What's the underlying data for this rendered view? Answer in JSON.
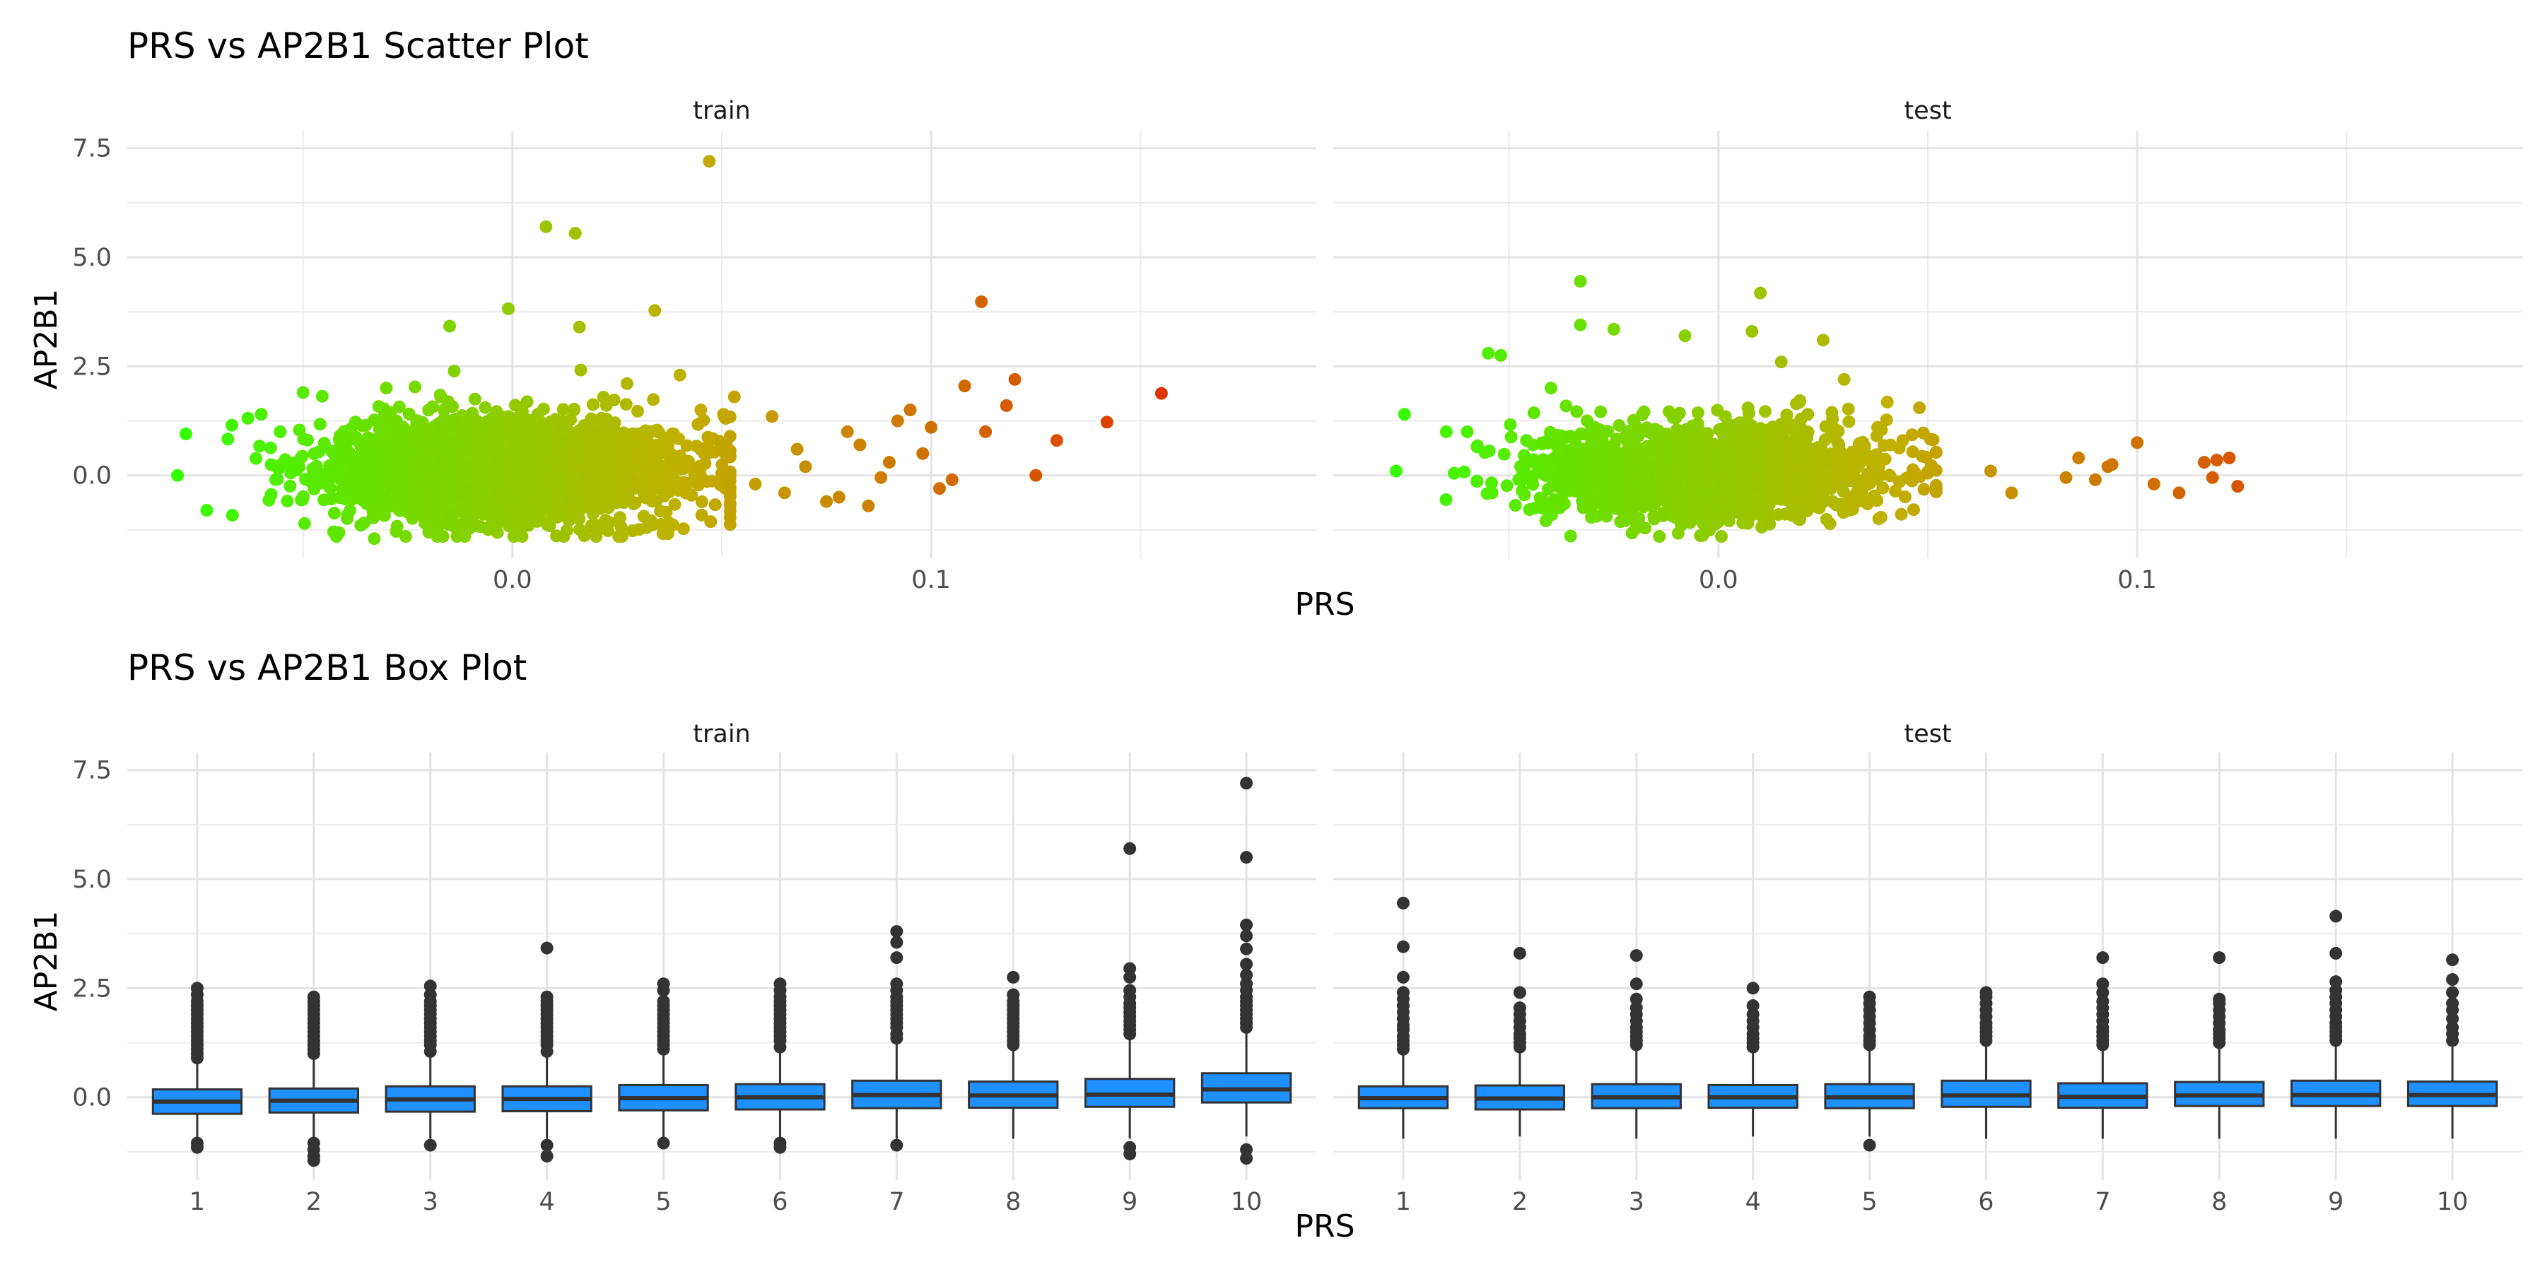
{
  "chart_data": [
    {
      "type": "scatter",
      "title": "PRS vs AP2B1 Scatter Plot",
      "xlabel": "PRS",
      "ylabel": "AP2B1",
      "xlim": [
        -0.092,
        0.192
      ],
      "ylim": [
        -1.9,
        7.9
      ],
      "x_ticks": [
        0.0,
        0.1
      ],
      "x_tick_labels": [
        "0.0",
        "0.1"
      ],
      "y_ticks": [
        0.0,
        2.5,
        5.0,
        7.5
      ],
      "y_tick_labels": [
        "0.0",
        "2.5",
        "5.0",
        "7.5"
      ],
      "grid": true,
      "color_scale": {
        "low": "#33ff00",
        "mid": "#c0b000",
        "high": "#e03000",
        "domain": [
          -0.08,
          0.16
        ]
      },
      "panels": [
        {
          "label": "train",
          "cloud": {
            "x_mean": -0.002,
            "x_sd": 0.021,
            "y_mean": 0.12,
            "y_sd": 0.6,
            "count": 2400
          },
          "points": [
            {
              "x": 0.047,
              "y": 7.2
            },
            {
              "x": 0.008,
              "y": 5.7
            },
            {
              "x": 0.015,
              "y": 5.55
            },
            {
              "x": 0.112,
              "y": 3.98
            },
            {
              "x": -0.015,
              "y": 3.42
            },
            {
              "x": -0.001,
              "y": 3.82
            },
            {
              "x": 0.034,
              "y": 3.78
            },
            {
              "x": 0.016,
              "y": 3.4
            },
            {
              "x": 0.155,
              "y": 1.88
            },
            {
              "x": 0.142,
              "y": 1.22
            },
            {
              "x": 0.13,
              "y": 0.8
            },
            {
              "x": 0.12,
              "y": 2.2
            },
            {
              "x": 0.118,
              "y": 1.6
            },
            {
              "x": 0.108,
              "y": 2.05
            },
            {
              "x": 0.1,
              "y": 1.1
            },
            {
              "x": 0.095,
              "y": 1.5
            },
            {
              "x": 0.09,
              "y": 0.3
            },
            {
              "x": 0.085,
              "y": -0.7
            },
            {
              "x": 0.078,
              "y": -0.5
            },
            {
              "x": 0.07,
              "y": 0.2
            },
            {
              "x": 0.068,
              "y": 0.6
            },
            {
              "x": 0.062,
              "y": 1.35
            },
            {
              "x": 0.058,
              "y": -0.2
            },
            {
              "x": 0.053,
              "y": 1.8
            },
            {
              "x": 0.05,
              "y": 0.05
            },
            {
              "x": 0.125,
              "y": 0.0
            },
            {
              "x": 0.105,
              "y": -0.1
            },
            {
              "x": 0.098,
              "y": 0.5
            },
            {
              "x": 0.088,
              "y": -0.05
            },
            {
              "x": 0.08,
              "y": 1.0
            },
            {
              "x": 0.075,
              "y": -0.6
            },
            {
              "x": 0.083,
              "y": 0.7
            },
            {
              "x": 0.092,
              "y": 1.25
            },
            {
              "x": 0.113,
              "y": 1.0
            },
            {
              "x": 0.102,
              "y": -0.3
            },
            {
              "x": 0.065,
              "y": -0.4
            },
            {
              "x": -0.078,
              "y": 0.95
            },
            {
              "x": -0.08,
              "y": 0.0
            },
            {
              "x": -0.073,
              "y": -0.8
            },
            {
              "x": -0.067,
              "y": 1.15
            },
            {
              "x": -0.06,
              "y": 1.4
            },
            {
              "x": -0.05,
              "y": 1.9
            },
            {
              "x": -0.033,
              "y": -1.45
            },
            {
              "x": -0.02,
              "y": -1.3
            },
            {
              "x": 0.02,
              "y": -1.4
            },
            {
              "x": 0.032,
              "y": -1.2
            },
            {
              "x": 0.04,
              "y": 2.3
            },
            {
              "x": 0.045,
              "y": 1.5
            }
          ]
        },
        {
          "label": "test",
          "cloud": {
            "x_mean": -0.002,
            "x_sd": 0.021,
            "y_mean": 0.08,
            "y_sd": 0.55,
            "count": 1500
          },
          "points": [
            {
              "x": -0.033,
              "y": 4.45
            },
            {
              "x": 0.01,
              "y": 4.18
            },
            {
              "x": -0.033,
              "y": 3.45
            },
            {
              "x": -0.025,
              "y": 3.35
            },
            {
              "x": -0.008,
              "y": 3.2
            },
            {
              "x": 0.008,
              "y": 3.3
            },
            {
              "x": 0.025,
              "y": 3.1
            },
            {
              "x": -0.055,
              "y": 2.8
            },
            {
              "x": -0.052,
              "y": 2.75
            },
            {
              "x": -0.075,
              "y": 1.4
            },
            {
              "x": -0.065,
              "y": 1.0
            },
            {
              "x": -0.06,
              "y": 1.0
            },
            {
              "x": -0.077,
              "y": 0.1
            },
            {
              "x": 0.122,
              "y": 0.4
            },
            {
              "x": 0.119,
              "y": 0.35
            },
            {
              "x": 0.116,
              "y": 0.3
            },
            {
              "x": 0.124,
              "y": -0.25
            },
            {
              "x": 0.11,
              "y": -0.4
            },
            {
              "x": 0.104,
              "y": -0.2
            },
            {
              "x": 0.1,
              "y": 0.75
            },
            {
              "x": 0.094,
              "y": 0.25
            },
            {
              "x": 0.09,
              "y": -0.1
            },
            {
              "x": 0.086,
              "y": 0.4
            },
            {
              "x": 0.083,
              "y": -0.05
            },
            {
              "x": 0.07,
              "y": -0.4
            },
            {
              "x": 0.065,
              "y": 0.1
            },
            {
              "x": 0.05,
              "y": 0.05
            },
            {
              "x": 0.048,
              "y": 1.55
            },
            {
              "x": 0.044,
              "y": 0.8
            },
            {
              "x": 0.038,
              "y": 1.1
            },
            {
              "x": 0.052,
              "y": -0.3
            },
            {
              "x": 0.093,
              "y": 0.2
            },
            {
              "x": 0.118,
              "y": -0.05
            },
            {
              "x": 0.03,
              "y": 2.2
            },
            {
              "x": -0.04,
              "y": 2.0
            },
            {
              "x": 0.015,
              "y": 2.6
            }
          ]
        }
      ]
    },
    {
      "type": "box",
      "title": "PRS vs AP2B1 Box Plot",
      "xlabel": "PRS",
      "ylabel": "AP2B1",
      "categories": [
        "1",
        "2",
        "3",
        "4",
        "5",
        "6",
        "7",
        "8",
        "9",
        "10"
      ],
      "ylim": [
        -1.9,
        7.9
      ],
      "y_ticks": [
        0.0,
        2.5,
        5.0,
        7.5
      ],
      "y_tick_labels": [
        "0.0",
        "2.5",
        "5.0",
        "7.5"
      ],
      "grid": true,
      "box_fill": "#1e90ff",
      "box_stroke": "#333333",
      "panels": [
        {
          "label": "train",
          "boxes": [
            {
              "q1": -0.38,
              "median": -0.1,
              "q3": 0.18,
              "lower": -1.0,
              "upper": 0.85,
              "outliers": [
                -1.05,
                -1.15,
                0.9,
                1.0,
                1.1,
                1.2,
                1.3,
                1.4,
                1.5,
                1.6,
                1.7,
                1.8,
                1.9,
                2.0,
                2.1,
                2.2,
                2.35,
                2.5
              ]
            },
            {
              "q1": -0.35,
              "median": -0.08,
              "q3": 0.2,
              "lower": -0.95,
              "upper": 0.9,
              "outliers": [
                -1.05,
                -1.2,
                -1.35,
                -1.45,
                1.0,
                1.1,
                1.2,
                1.3,
                1.4,
                1.5,
                1.6,
                1.7,
                1.8,
                1.9,
                2.0,
                2.1,
                2.2,
                2.3
              ]
            },
            {
              "q1": -0.33,
              "median": -0.05,
              "q3": 0.25,
              "lower": -0.95,
              "upper": 1.0,
              "outliers": [
                -1.1,
                1.05,
                1.2,
                1.3,
                1.4,
                1.5,
                1.6,
                1.7,
                1.8,
                1.9,
                2.0,
                2.1,
                2.2,
                2.35,
                2.55
              ]
            },
            {
              "q1": -0.32,
              "median": -0.04,
              "q3": 0.25,
              "lower": -0.95,
              "upper": 1.0,
              "outliers": [
                -1.1,
                -1.35,
                1.05,
                1.2,
                1.3,
                1.4,
                1.5,
                1.6,
                1.7,
                1.8,
                1.9,
                2.0,
                2.1,
                2.2,
                2.3,
                3.42
              ]
            },
            {
              "q1": -0.3,
              "median": -0.02,
              "q3": 0.28,
              "lower": -0.92,
              "upper": 1.05,
              "outliers": [
                -1.05,
                1.1,
                1.2,
                1.3,
                1.4,
                1.5,
                1.6,
                1.7,
                1.8,
                1.9,
                2.0,
                2.1,
                2.2,
                2.45,
                2.6
              ]
            },
            {
              "q1": -0.28,
              "median": 0.0,
              "q3": 0.3,
              "lower": -0.95,
              "upper": 1.1,
              "outliers": [
                -1.05,
                -1.15,
                1.15,
                1.3,
                1.4,
                1.5,
                1.6,
                1.7,
                1.8,
                1.9,
                2.0,
                2.1,
                2.2,
                2.3,
                2.45,
                2.6
              ]
            },
            {
              "q1": -0.25,
              "median": 0.05,
              "q3": 0.38,
              "lower": -0.95,
              "upper": 1.25,
              "outliers": [
                -1.1,
                1.35,
                1.45,
                1.6,
                1.7,
                1.8,
                1.9,
                2.0,
                2.1,
                2.2,
                2.3,
                2.45,
                2.6,
                3.2,
                3.55,
                3.8
              ]
            },
            {
              "q1": -0.24,
              "median": 0.04,
              "q3": 0.36,
              "lower": -0.95,
              "upper": 1.15,
              "outliers": [
                1.2,
                1.3,
                1.4,
                1.5,
                1.6,
                1.7,
                1.8,
                1.9,
                2.0,
                2.1,
                2.2,
                2.35,
                2.75
              ]
            },
            {
              "q1": -0.22,
              "median": 0.06,
              "q3": 0.42,
              "lower": -0.95,
              "upper": 1.35,
              "outliers": [
                -1.15,
                -1.3,
                1.45,
                1.55,
                1.65,
                1.75,
                1.85,
                1.95,
                2.05,
                2.15,
                2.3,
                2.45,
                2.75,
                2.95,
                5.7
              ]
            },
            {
              "q1": -0.12,
              "median": 0.18,
              "q3": 0.55,
              "lower": -0.9,
              "upper": 1.5,
              "outliers": [
                -1.2,
                -1.4,
                1.6,
                1.7,
                1.8,
                1.9,
                2.0,
                2.1,
                2.2,
                2.3,
                2.45,
                2.6,
                2.8,
                3.05,
                3.4,
                3.7,
                3.95,
                5.5,
                7.2
              ]
            }
          ]
        },
        {
          "label": "test",
          "boxes": [
            {
              "q1": -0.25,
              "median": -0.02,
              "q3": 0.25,
              "lower": -0.95,
              "upper": 1.0,
              "outliers": [
                1.1,
                1.2,
                1.3,
                1.4,
                1.55,
                1.65,
                1.8,
                1.95,
                2.1,
                2.25,
                2.4,
                2.75,
                3.45,
                4.45
              ]
            },
            {
              "q1": -0.28,
              "median": -0.03,
              "q3": 0.27,
              "lower": -0.9,
              "upper": 1.05,
              "outliers": [
                1.15,
                1.25,
                1.35,
                1.45,
                1.6,
                1.75,
                1.9,
                2.05,
                2.4,
                3.3
              ]
            },
            {
              "q1": -0.25,
              "median": 0.0,
              "q3": 0.3,
              "lower": -0.95,
              "upper": 1.1,
              "outliers": [
                1.2,
                1.3,
                1.4,
                1.5,
                1.6,
                1.75,
                1.9,
                2.05,
                2.25,
                2.6,
                3.25
              ]
            },
            {
              "q1": -0.24,
              "median": 0.0,
              "q3": 0.28,
              "lower": -0.9,
              "upper": 1.05,
              "outliers": [
                1.15,
                1.25,
                1.35,
                1.45,
                1.6,
                1.75,
                1.9,
                2.1,
                2.5
              ]
            },
            {
              "q1": -0.25,
              "median": 0.0,
              "q3": 0.3,
              "lower": -0.9,
              "upper": 1.1,
              "outliers": [
                -1.1,
                1.2,
                1.3,
                1.4,
                1.55,
                1.7,
                1.85,
                2.0,
                2.15,
                2.3
              ]
            },
            {
              "q1": -0.22,
              "median": 0.04,
              "q3": 0.38,
              "lower": -0.95,
              "upper": 1.2,
              "outliers": [
                1.3,
                1.4,
                1.5,
                1.6,
                1.7,
                1.85,
                2.0,
                2.15,
                2.3,
                2.4
              ]
            },
            {
              "q1": -0.24,
              "median": 0.01,
              "q3": 0.32,
              "lower": -0.95,
              "upper": 1.1,
              "outliers": [
                1.2,
                1.3,
                1.4,
                1.5,
                1.6,
                1.75,
                1.9,
                2.05,
                2.2,
                2.4,
                2.6,
                3.2
              ]
            },
            {
              "q1": -0.2,
              "median": 0.04,
              "q3": 0.35,
              "lower": -0.95,
              "upper": 1.15,
              "outliers": [
                1.25,
                1.35,
                1.45,
                1.55,
                1.7,
                1.85,
                2.0,
                2.15,
                2.25,
                3.2
              ]
            },
            {
              "q1": -0.2,
              "median": 0.05,
              "q3": 0.38,
              "lower": -0.95,
              "upper": 1.2,
              "outliers": [
                1.3,
                1.4,
                1.5,
                1.6,
                1.7,
                1.85,
                2.0,
                2.15,
                2.3,
                2.45,
                2.65,
                3.3,
                4.15
              ]
            },
            {
              "q1": -0.2,
              "median": 0.05,
              "q3": 0.36,
              "lower": -0.95,
              "upper": 1.15,
              "outliers": [
                1.3,
                1.45,
                1.6,
                1.8,
                2.0,
                2.15,
                2.4,
                2.7,
                3.15
              ]
            }
          ]
        }
      ]
    }
  ]
}
